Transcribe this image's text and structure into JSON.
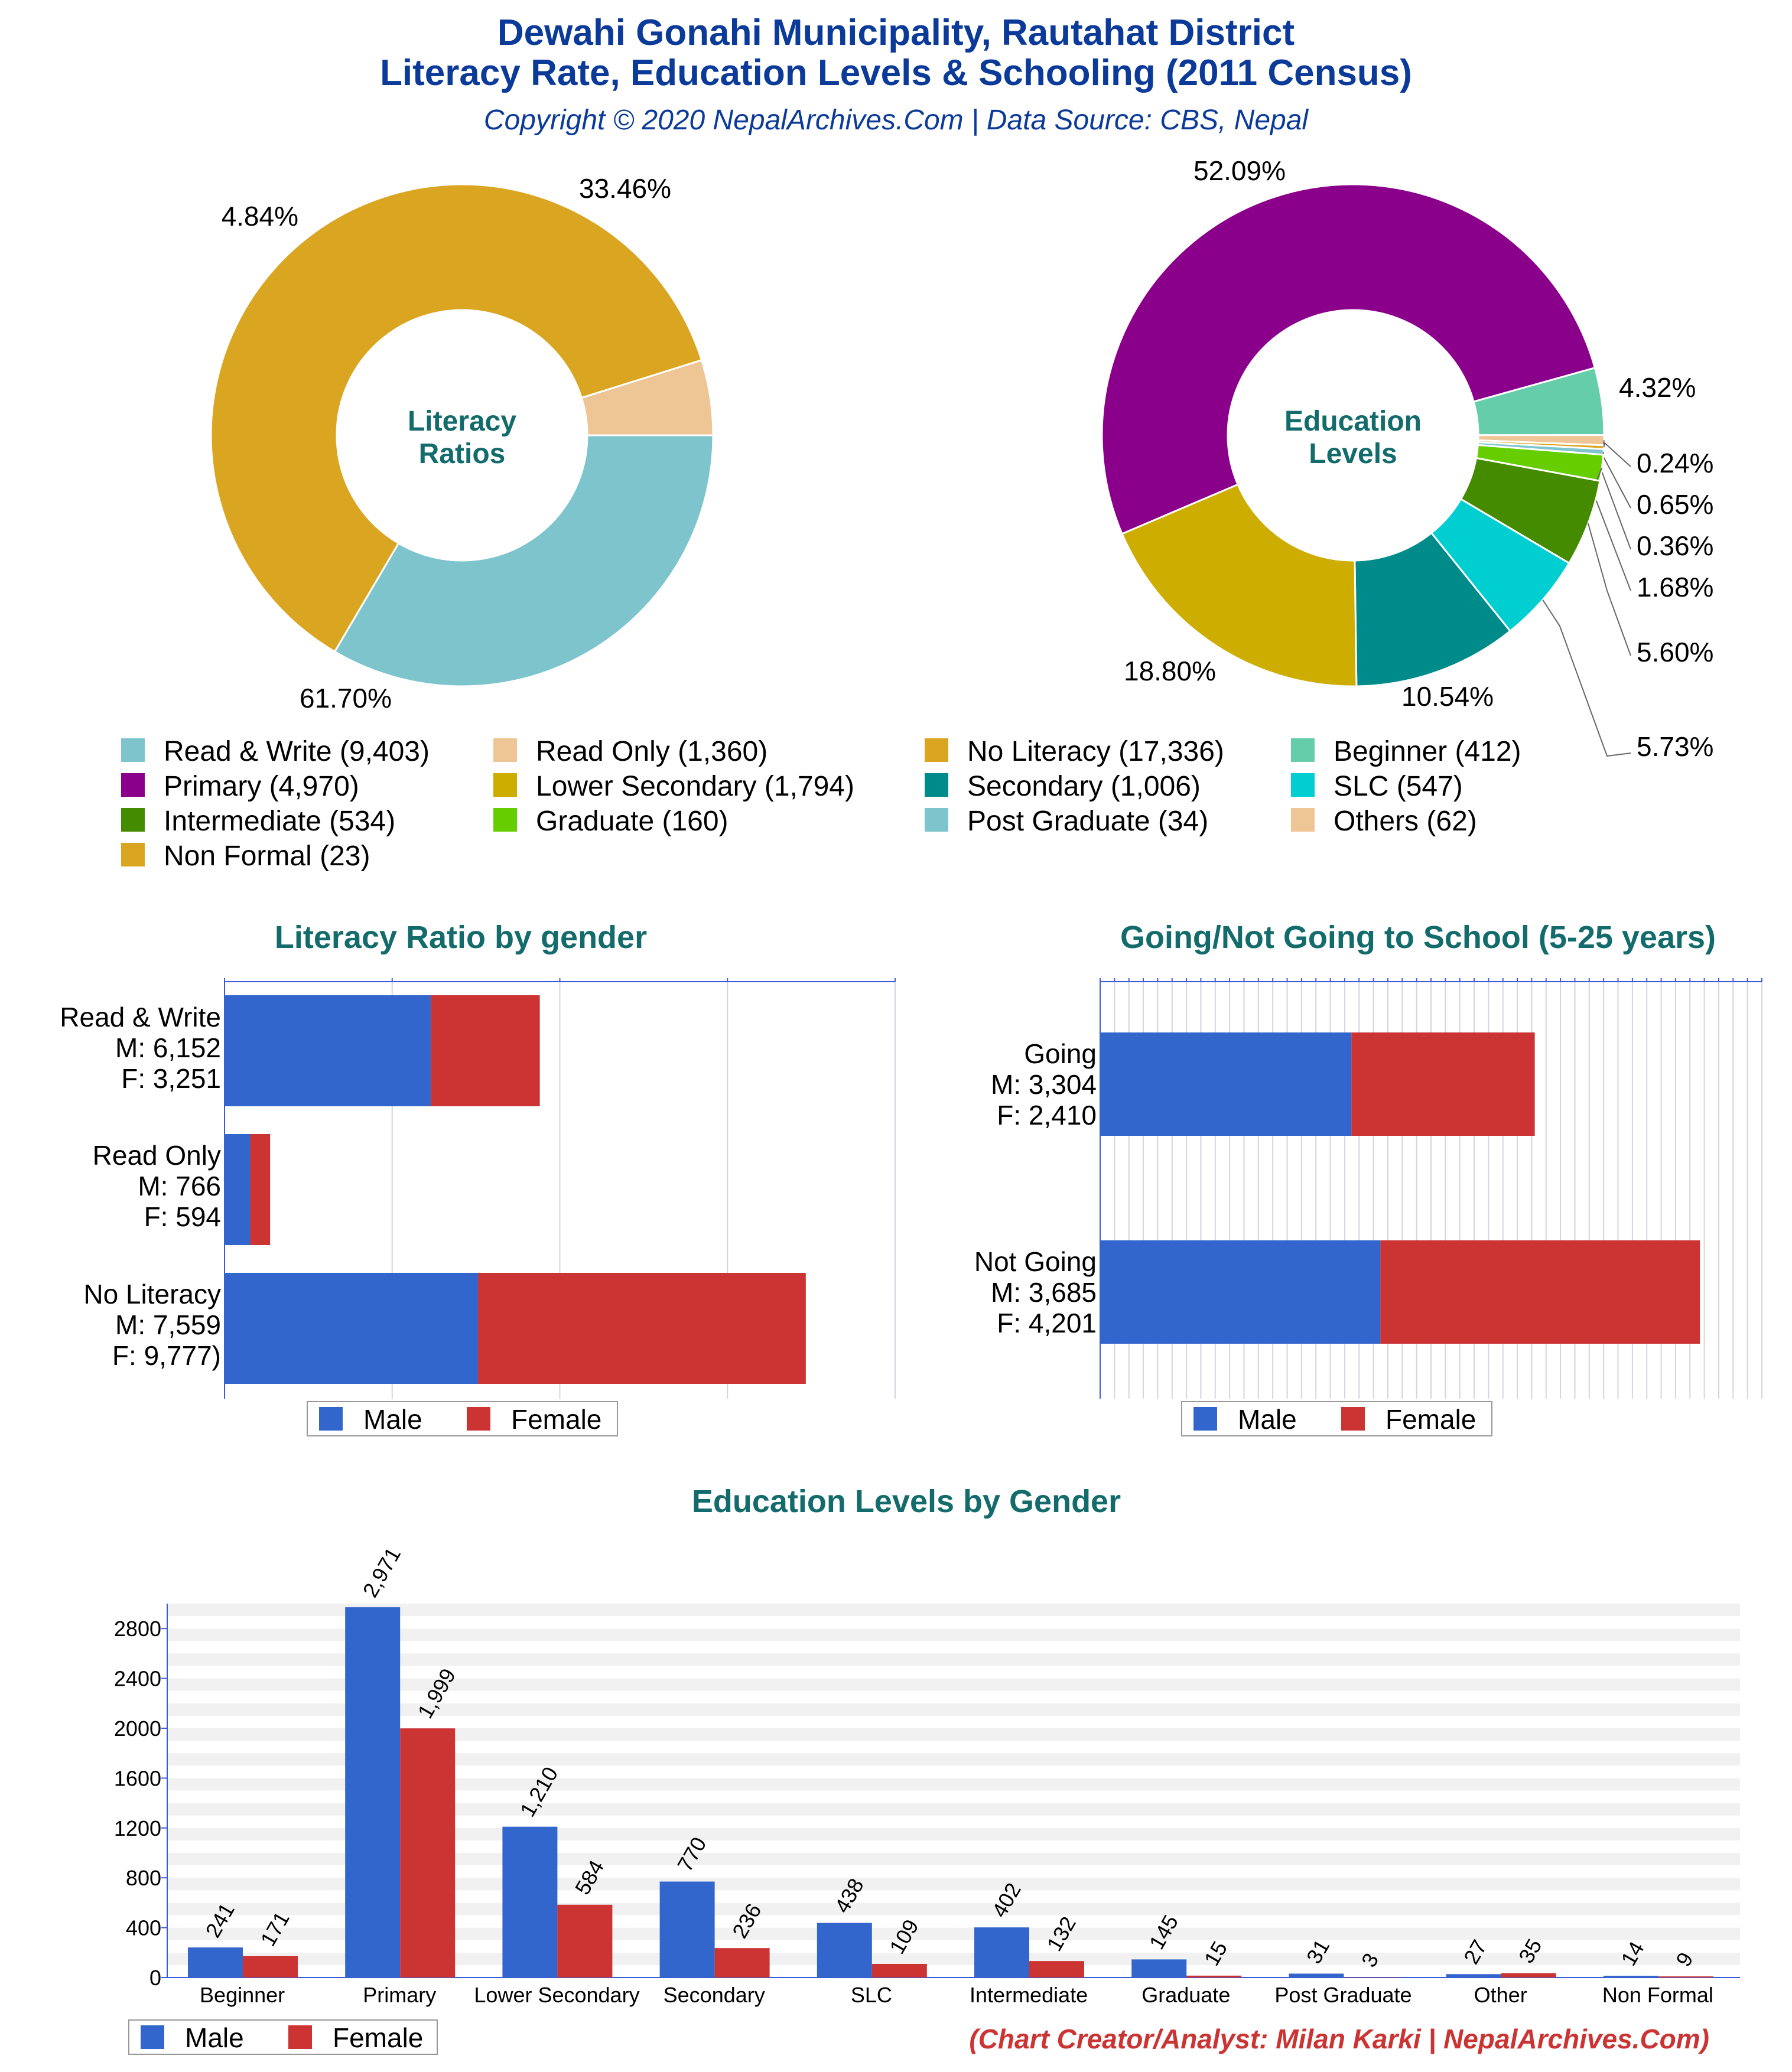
{
  "header": {
    "title_line1": "Dewahi Gonahi Municipality, Rautahat District",
    "title_line2": "Literacy Rate, Education Levels & Schooling (2011 Census)",
    "subtitle": "Copyright © 2020 NepalArchives.Com | Data Source: CBS, Nepal"
  },
  "footer": {
    "credit": "(Chart Creator/Analyst: Milan Karki | NepalArchives.Com)"
  },
  "colors": {
    "title": "#0b3a99",
    "section_title": "#136b6b",
    "male": "#3366cc",
    "female": "#cc3333",
    "credit": "#cc3333"
  },
  "legend_main": [
    {
      "label": "Read & Write (9,403)",
      "color": "#7ec4cc"
    },
    {
      "label": "Read Only (1,360)",
      "color": "#eec695"
    },
    {
      "label": "No Literacy (17,336)",
      "color": "#daa520"
    },
    {
      "label": "Beginner (412)",
      "color": "#66cdaa"
    },
    {
      "label": "Primary (4,970)",
      "color": "#8b008b"
    },
    {
      "label": "Lower Secondary (1,794)",
      "color": "#ccad00"
    },
    {
      "label": "Secondary (1,006)",
      "color": "#008b8b"
    },
    {
      "label": "SLC (547)",
      "color": "#00ced1"
    },
    {
      "label": "Intermediate (534)",
      "color": "#458b00"
    },
    {
      "label": "Graduate (160)",
      "color": "#66cd00"
    },
    {
      "label": "Post Graduate (34)",
      "color": "#7ec4cc"
    },
    {
      "label": "Others (62)",
      "color": "#eec695"
    },
    {
      "label": "Non Formal (23)",
      "color": "#daa520"
    }
  ],
  "legend_gender": {
    "male": "Male",
    "female": "Female"
  },
  "chart_data": [
    {
      "id": "literacy_pie",
      "type": "pie",
      "center_label": [
        "Literacy",
        "Ratios"
      ],
      "slices": [
        {
          "label": "Read & Write",
          "value": 9403,
          "pct_label": "33.46%",
          "color": "#7ec4cc"
        },
        {
          "label": "No Literacy",
          "value": 17336,
          "pct_label": "61.70%",
          "color": "#daa520"
        },
        {
          "label": "Read Only",
          "value": 1360,
          "pct_label": "4.84%",
          "color": "#eec695"
        }
      ]
    },
    {
      "id": "education_pie",
      "type": "pie",
      "center_label": [
        "Education",
        "Levels"
      ],
      "slices": [
        {
          "label": "Beginner",
          "value": 412,
          "pct_label": "4.32%",
          "color": "#66cdaa"
        },
        {
          "label": "Others",
          "value": 62,
          "pct_label": "0.65%",
          "color": "#eec695"
        },
        {
          "label": "Non Formal",
          "value": 23,
          "pct_label": "0.24%",
          "color": "#daa520"
        },
        {
          "label": "Post Graduate",
          "value": 34,
          "pct_label": "0.36%",
          "color": "#7ec4cc"
        },
        {
          "label": "Graduate",
          "value": 160,
          "pct_label": "1.68%",
          "color": "#66cd00"
        },
        {
          "label": "Intermediate",
          "value": 534,
          "pct_label": "5.60%",
          "color": "#458b00"
        },
        {
          "label": "SLC",
          "value": 547,
          "pct_label": "5.73%",
          "color": "#00ced1"
        },
        {
          "label": "Secondary",
          "value": 1006,
          "pct_label": "10.54%",
          "color": "#008b8b"
        },
        {
          "label": "Lower Secondary",
          "value": 1794,
          "pct_label": "18.80%",
          "color": "#ccad00"
        },
        {
          "label": "Primary",
          "value": 4970,
          "pct_label": "52.09%",
          "color": "#8b008b"
        }
      ]
    },
    {
      "id": "literacy_gender",
      "type": "bar",
      "orientation": "horizontal",
      "stacked": true,
      "title": "Literacy Ratio by gender",
      "grid": true,
      "xlim": [
        0,
        20000
      ],
      "categories": [
        {
          "lines": [
            "Read & Write",
            "M: 6,152",
            "F: 3,251"
          ],
          "male": 6152,
          "female": 3251
        },
        {
          "lines": [
            "Read Only",
            "M: 766",
            "F: 594"
          ],
          "male": 766,
          "female": 594
        },
        {
          "lines": [
            "No Literacy",
            "M: 7,559",
            "F: 9,777)"
          ],
          "male": 7559,
          "female": 9777
        }
      ]
    },
    {
      "id": "school_gender",
      "type": "bar",
      "orientation": "horizontal",
      "stacked": true,
      "title": "Going/Not Going to School (5-25 years)",
      "grid": true,
      "xlim": [
        0,
        8700
      ],
      "categories": [
        {
          "lines": [
            "Going",
            "M: 3,304",
            "F: 2,410"
          ],
          "male": 3304,
          "female": 2410
        },
        {
          "lines": [
            "Not Going",
            "M: 3,685",
            "F: 4,201"
          ],
          "male": 3685,
          "female": 4201
        }
      ]
    },
    {
      "id": "education_gender",
      "type": "bar",
      "orientation": "vertical",
      "stacked": false,
      "title": "Education Levels by Gender",
      "ylim": [
        0,
        3000
      ],
      "yticks": [
        0,
        400,
        800,
        1200,
        1600,
        2000,
        2400,
        2800
      ],
      "categories": [
        "Beginner",
        "Primary",
        "Lower Secondary",
        "Secondary",
        "SLC",
        "Intermediate",
        "Graduate",
        "Post Graduate",
        "Other",
        "Non Formal"
      ],
      "series": [
        {
          "name": "Male",
          "color": "#3366cc",
          "values": [
            241,
            2971,
            1210,
            770,
            438,
            402,
            145,
            31,
            27,
            14
          ],
          "labels": [
            "241",
            "2,971",
            "1,210",
            "770",
            "438",
            "402",
            "145",
            "31",
            "27",
            "14"
          ]
        },
        {
          "name": "Female",
          "color": "#cc3333",
          "values": [
            171,
            1999,
            584,
            236,
            109,
            132,
            15,
            3,
            35,
            9
          ],
          "labels": [
            "171",
            "1,999",
            "584",
            "236",
            "109",
            "132",
            "15",
            "3",
            "35",
            "9"
          ]
        }
      ]
    }
  ]
}
